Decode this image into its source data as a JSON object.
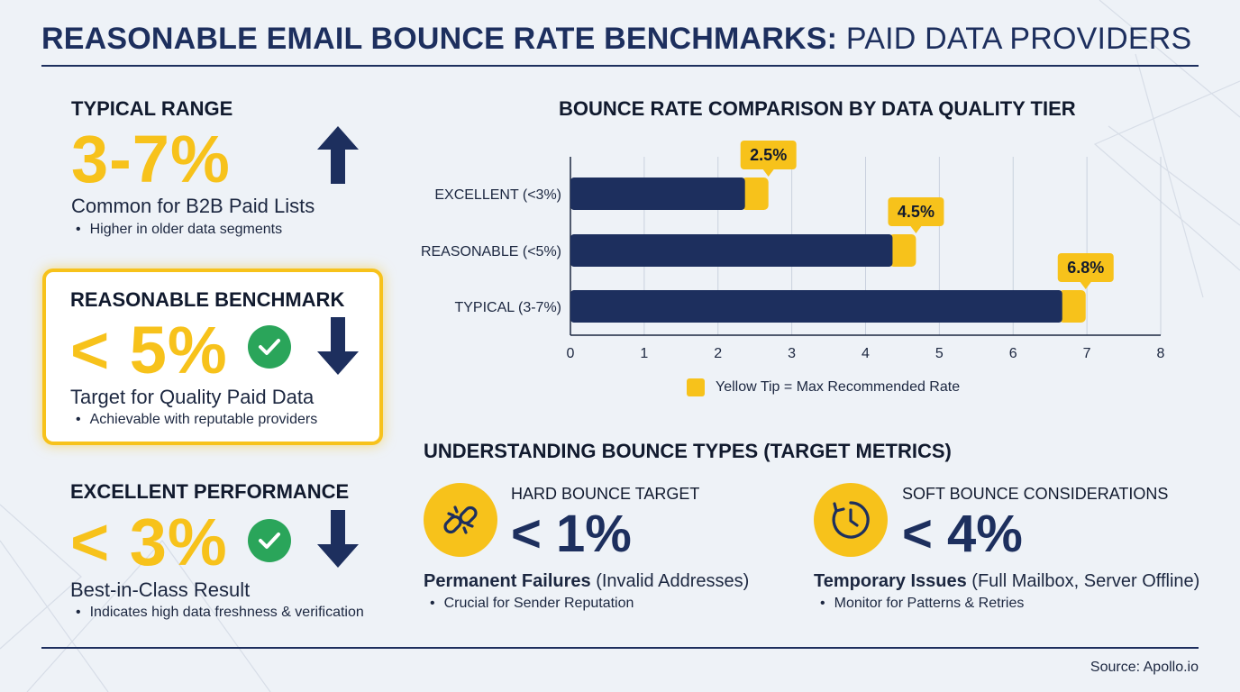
{
  "title": {
    "bold": "REASONABLE EMAIL BOUNCE RATE BENCHMARKS:",
    "light": "PAID DATA PROVIDERS"
  },
  "left_panel": {
    "typical": {
      "heading": "TYPICAL RANGE",
      "value": "3-7%",
      "subtitle": "Common for B2B Paid Lists",
      "bullet": "Higher in older data segments",
      "arrow": "arrow-up-icon"
    },
    "reasonable": {
      "heading": "REASONABLE BENCHMARK",
      "value": "< 5%",
      "subtitle": "Target for Quality Paid Data",
      "bullet": "Achievable with reputable providers",
      "arrow": "arrow-down-icon"
    },
    "excellent": {
      "heading": "EXCELLENT PERFORMANCE",
      "value": "< 3%",
      "subtitle": "Best-in-Class Result",
      "bullet": "Indicates high data freshness & verification",
      "arrow": "arrow-down-icon"
    }
  },
  "chart_data": {
    "type": "bar",
    "orientation": "horizontal",
    "title": "BOUNCE RATE COMPARISON BY DATA QUALITY TIER",
    "categories": [
      "EXCELLENT (<3%)",
      "REASONABLE (<5%)",
      "TYPICAL (3-7%)"
    ],
    "values": [
      2.5,
      4.5,
      6.8
    ],
    "data_labels": [
      "2.5%",
      "4.5%",
      "6.8%"
    ],
    "xlim": [
      0,
      8
    ],
    "xticks": [
      0,
      1,
      2,
      3,
      4,
      5,
      6,
      7,
      8
    ],
    "grid": true,
    "legend": {
      "label": "Yellow Tip = Max Recommended Rate",
      "position": "bottom"
    },
    "colors": {
      "bar": "#1d2f5e",
      "tip": "#f7c21b",
      "grid": "#c9d1de",
      "axis": "#1c2740"
    }
  },
  "bounce_types": {
    "heading": "UNDERSTANDING BOUNCE TYPES (TARGET METRICS)",
    "hard": {
      "label": "HARD BOUNCE TARGET",
      "value": "< 1%",
      "desc_bold": "Permanent Failures",
      "desc_rest": "(Invalid Addresses)",
      "bullet": "Crucial for Sender Reputation",
      "icon": "broken-link-icon"
    },
    "soft": {
      "label": "SOFT BOUNCE CONSIDERATIONS",
      "value": "< 4%",
      "desc_bold": "Temporary Issues",
      "desc_rest": "(Full Mailbox, Server Offline)",
      "bullet": "Monitor for Patterns & Retries",
      "icon": "clock-retry-icon"
    }
  },
  "source": "Source: Apollo.io",
  "colors": {
    "navy": "#1d2f5e",
    "yellow": "#f7c21b",
    "green": "#2aa55a",
    "background": "#eef2f7"
  }
}
